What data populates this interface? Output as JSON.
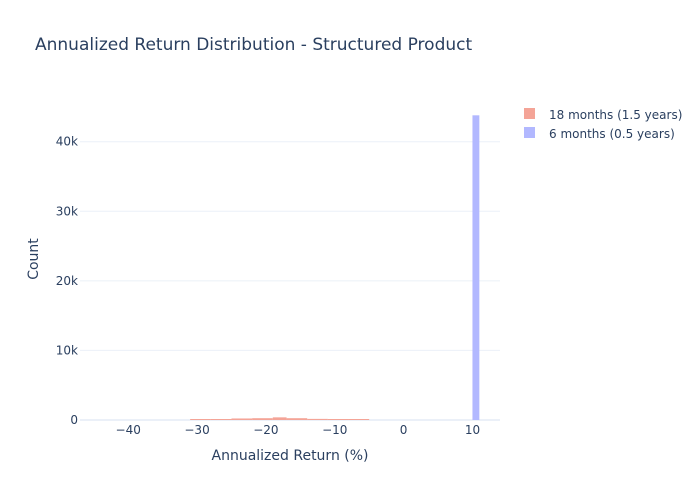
{
  "chart_data": {
    "type": "histogram",
    "title": "Annualized Return Distribution - Structured Product",
    "xlabel": "Annualized Return (%)",
    "ylabel": "Count",
    "xlim": [
      -47,
      14
    ],
    "ylim": [
      0,
      46000
    ],
    "x_ticks": [
      -40,
      -30,
      -20,
      -10,
      0,
      10
    ],
    "x_tick_labels": [
      "−40",
      "−30",
      "−20",
      "−10",
      "0",
      "10"
    ],
    "y_ticks": [
      0,
      10000,
      20000,
      30000,
      40000
    ],
    "y_tick_labels": [
      "0",
      "10k",
      "20k",
      "30k",
      "40k"
    ],
    "grid": true,
    "legend_position": "top-right",
    "series": [
      {
        "name": "18 months (1.5 years)",
        "color": "#f4a497",
        "bins": [
          {
            "x0": -31,
            "x1": -28,
            "count": 60
          },
          {
            "x0": -28,
            "x1": -25,
            "count": 120
          },
          {
            "x0": -25,
            "x1": -22,
            "count": 220
          },
          {
            "x0": -22,
            "x1": -19,
            "count": 260
          },
          {
            "x0": -19,
            "x1": -17,
            "count": 380
          },
          {
            "x0": -17,
            "x1": -14,
            "count": 260
          },
          {
            "x0": -14,
            "x1": -11,
            "count": 160
          },
          {
            "x0": -11,
            "x1": -8,
            "count": 100
          },
          {
            "x0": -8,
            "x1": -5,
            "count": 50
          }
        ]
      },
      {
        "name": "6 months (0.5 years)",
        "color": "#b2b8ff",
        "bins": [
          {
            "x0": 10,
            "x1": 11,
            "count": 43800
          }
        ]
      }
    ]
  }
}
